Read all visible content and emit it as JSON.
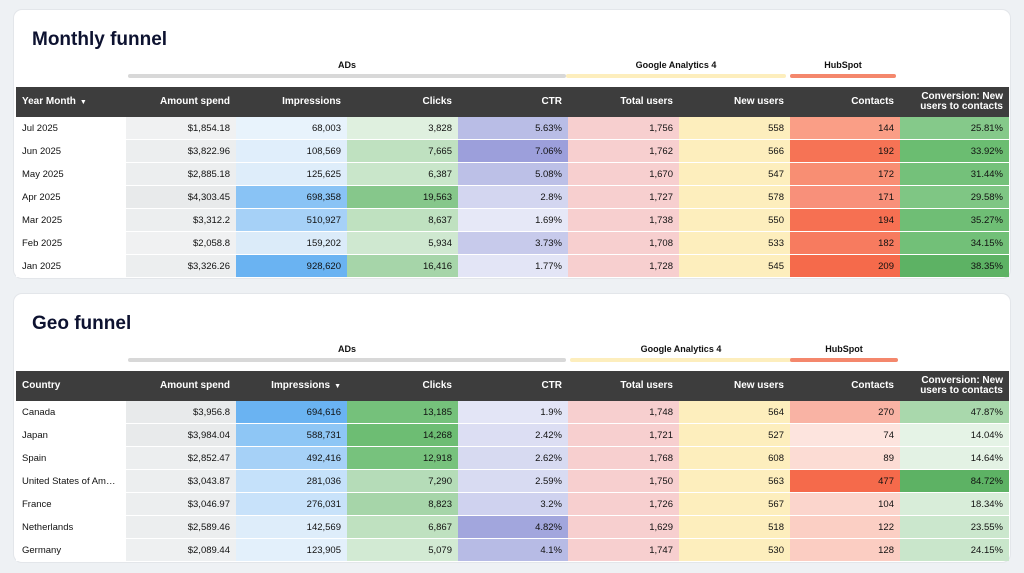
{
  "monthly": {
    "title": "Monthly funnel",
    "groups": {
      "ads": "ADs",
      "ga4": "Google Analytics 4",
      "hubspot": "HubSpot"
    },
    "headers": [
      "Year Month",
      "Amount spend",
      "Impressions",
      "Clicks",
      "CTR",
      "Total users",
      "New users",
      "Contacts",
      "Conversion: New users to contacts"
    ],
    "sort_indicator": "▼",
    "rows": [
      {
        "label": "Jul 2025",
        "spend": "$1,854.18",
        "impr": "68,003",
        "clicks": "3,828",
        "ctr": "5.63%",
        "total": "1,756",
        "new": "558",
        "contacts": "144",
        "conv": "25.81%"
      },
      {
        "label": "Jun 2025",
        "spend": "$3,822.96",
        "impr": "108,569",
        "clicks": "7,665",
        "ctr": "7.06%",
        "total": "1,762",
        "new": "566",
        "contacts": "192",
        "conv": "33.92%"
      },
      {
        "label": "May 2025",
        "spend": "$2,885.18",
        "impr": "125,625",
        "clicks": "6,387",
        "ctr": "5.08%",
        "total": "1,670",
        "new": "547",
        "contacts": "172",
        "conv": "31.44%"
      },
      {
        "label": "Apr 2025",
        "spend": "$4,303.45",
        "impr": "698,358",
        "clicks": "19,563",
        "ctr": "2.8%",
        "total": "1,727",
        "new": "578",
        "contacts": "171",
        "conv": "29.58%"
      },
      {
        "label": "Mar 2025",
        "spend": "$3,312.2",
        "impr": "510,927",
        "clicks": "8,637",
        "ctr": "1.69%",
        "total": "1,738",
        "new": "550",
        "contacts": "194",
        "conv": "35.27%"
      },
      {
        "label": "Feb 2025",
        "spend": "$2,058.8",
        "impr": "159,202",
        "clicks": "5,934",
        "ctr": "3.73%",
        "total": "1,708",
        "new": "533",
        "contacts": "182",
        "conv": "34.15%"
      },
      {
        "label": "Jan 2025",
        "spend": "$3,326.26",
        "impr": "928,620",
        "clicks": "16,416",
        "ctr": "1.77%",
        "total": "1,728",
        "new": "545",
        "contacts": "209",
        "conv": "38.35%"
      }
    ],
    "colors": [
      [
        "#ffffff",
        "#f0f1f2",
        "#e8f3fc",
        "#dff0df",
        "#b9bde6",
        "#f7cfcf",
        "#fdeebd",
        "#fa9e86",
        "#85c98a"
      ],
      [
        "#ffffff",
        "#eceeef",
        "#e0eefb",
        "#bfe1c0",
        "#9c9fdb",
        "#f7cfcf",
        "#fdeebd",
        "#f67355",
        "#6bbd71"
      ],
      [
        "#ffffff",
        "#eceeef",
        "#deedfa",
        "#c9e6ca",
        "#bcc0e7",
        "#f7cfcf",
        "#fdeebd",
        "#f88e73",
        "#74c17a"
      ],
      [
        "#ffffff",
        "#e8eaeb",
        "#89c3f5",
        "#86c78b",
        "#d3d6f0",
        "#f7cfcf",
        "#fdeebd",
        "#f8907a",
        "#7fc684"
      ],
      [
        "#ffffff",
        "#eceeef",
        "#a6d1f7",
        "#bfe1c0",
        "#e6e8f7",
        "#f7cfcf",
        "#fdeebd",
        "#f67052",
        "#6fbe75"
      ],
      [
        "#ffffff",
        "#f0f1f2",
        "#dbebf9",
        "#cfe8d0",
        "#c7caeb",
        "#f7cfcf",
        "#fdeebd",
        "#f77b5f",
        "#72c078"
      ],
      [
        "#ffffff",
        "#eceeef",
        "#6ab3f2",
        "#a6d5a9",
        "#e3e5f6",
        "#f7cfcf",
        "#fdeebd",
        "#f56a4b",
        "#5db264"
      ]
    ]
  },
  "geo": {
    "title": "Geo funnel",
    "groups": {
      "ads": "ADs",
      "ga4": "Google Analytics 4",
      "hubspot": "HubSpot"
    },
    "headers": [
      "Country",
      "Amount spend",
      "Impressions",
      "Clicks",
      "CTR",
      "Total users",
      "New users",
      "Contacts",
      "Conversion: New users to contacts"
    ],
    "sort_indicator": "▼",
    "rows": [
      {
        "label": "Canada",
        "spend": "$3,956.8",
        "impr": "694,616",
        "clicks": "13,185",
        "ctr": "1.9%",
        "total": "1,748",
        "new": "564",
        "contacts": "270",
        "conv": "47.87%"
      },
      {
        "label": "Japan",
        "spend": "$3,984.04",
        "impr": "588,731",
        "clicks": "14,268",
        "ctr": "2.42%",
        "total": "1,721",
        "new": "527",
        "contacts": "74",
        "conv": "14.04%"
      },
      {
        "label": "Spain",
        "spend": "$2,852.47",
        "impr": "492,416",
        "clicks": "12,918",
        "ctr": "2.62%",
        "total": "1,768",
        "new": "608",
        "contacts": "89",
        "conv": "14.64%"
      },
      {
        "label": "United States of America",
        "spend": "$3,043.87",
        "impr": "281,036",
        "clicks": "7,290",
        "ctr": "2.59%",
        "total": "1,750",
        "new": "563",
        "contacts": "477",
        "conv": "84.72%"
      },
      {
        "label": "France",
        "spend": "$3,046.97",
        "impr": "276,031",
        "clicks": "8,823",
        "ctr": "3.2%",
        "total": "1,726",
        "new": "567",
        "contacts": "104",
        "conv": "18.34%"
      },
      {
        "label": "Netherlands",
        "spend": "$2,589.46",
        "impr": "142,569",
        "clicks": "6,867",
        "ctr": "4.82%",
        "total": "1,629",
        "new": "518",
        "contacts": "122",
        "conv": "23.55%"
      },
      {
        "label": "Germany",
        "spend": "$2,089.44",
        "impr": "123,905",
        "clicks": "5,079",
        "ctr": "4.1%",
        "total": "1,747",
        "new": "530",
        "contacts": "128",
        "conv": "24.15%"
      }
    ],
    "colors": [
      [
        "#ffffff",
        "#e8eaeb",
        "#6ab3f2",
        "#75c17b",
        "#e3e5f6",
        "#f7cfcf",
        "#fdeebd",
        "#f9b3a4",
        "#a9d8ac"
      ],
      [
        "#ffffff",
        "#e8eaeb",
        "#8ec6f5",
        "#6dbd73",
        "#dcdef3",
        "#f7cfcf",
        "#fdeebd",
        "#fde4de",
        "#e5f3e6"
      ],
      [
        "#ffffff",
        "#eceeef",
        "#a6d1f7",
        "#77c27d",
        "#d7daf1",
        "#f7cfcf",
        "#fdeebd",
        "#fcdcd4",
        "#e3f2e4"
      ],
      [
        "#ffffff",
        "#eceeef",
        "#c5e1fa",
        "#b5dcb8",
        "#d8dbf2",
        "#f7cfcf",
        "#fdeebd",
        "#f56a4b",
        "#5db264"
      ],
      [
        "#ffffff",
        "#eceeef",
        "#c8e2fa",
        "#a6d5a9",
        "#cfd2ef",
        "#f7cfcf",
        "#fdeebd",
        "#fbd5cc",
        "#d8edd9"
      ],
      [
        "#ffffff",
        "#eceeef",
        "#deedfa",
        "#bfe1c0",
        "#a2a6dd",
        "#f7cfcf",
        "#fdeebd",
        "#fbcfc4",
        "#cbe7cd"
      ],
      [
        "#ffffff",
        "#eef0f1",
        "#e3f0fb",
        "#d2ead3",
        "#b7bbe5",
        "#f7cfcf",
        "#fdeebd",
        "#fbcdc2",
        "#c9e6cb"
      ]
    ]
  }
}
